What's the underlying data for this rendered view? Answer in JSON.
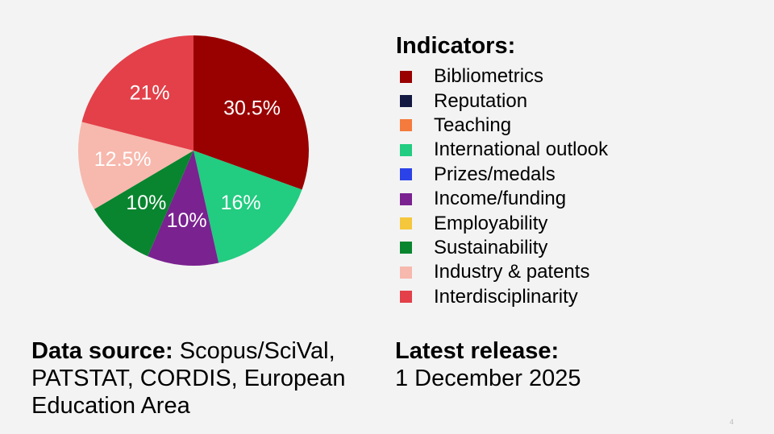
{
  "chart_data": {
    "type": "pie",
    "slices": [
      {
        "label": "Bibliometrics",
        "value": 30.5,
        "display": "30.5%",
        "color": "#990000"
      },
      {
        "label": "International outlook",
        "value": 16,
        "display": "16%",
        "color": "#22cc80"
      },
      {
        "label": "Income/funding",
        "value": 10,
        "display": "10%",
        "color": "#7a2290"
      },
      {
        "label": "Sustainability",
        "value": 10,
        "display": "10%",
        "color": "#09852f"
      },
      {
        "label": "Industry & patents",
        "value": 12.5,
        "display": "12.5%",
        "color": "#f7b8ad"
      },
      {
        "label": "Interdisciplinarity",
        "value": 21,
        "display": "21%",
        "color": "#e34049"
      }
    ]
  },
  "legend": {
    "title": "Indicators:",
    "items": [
      {
        "label": "Bibliometrics",
        "color": "#990000"
      },
      {
        "label": "Reputation",
        "color": "#131940"
      },
      {
        "label": "Teaching",
        "color": "#f57b3c"
      },
      {
        "label": "International outlook",
        "color": "#22cc80"
      },
      {
        "label": "Prizes/medals",
        "color": "#2b42e8"
      },
      {
        "label": "Income/funding",
        "color": "#7a2290"
      },
      {
        "label": "Employability",
        "color": "#f5c73c"
      },
      {
        "label": "Sustainability",
        "color": "#09852f"
      },
      {
        "label": "Industry & patents",
        "color": "#f7b8ad"
      },
      {
        "label": "Interdisciplinarity",
        "color": "#e34049"
      }
    ]
  },
  "footer": {
    "source_label": "Data source:",
    "source_text": "Scopus/SciVal, PATSTAT, CORDIS, European Education Area",
    "release_label": "Latest release:",
    "release_text": "1 December 2025"
  },
  "slide_number": "4"
}
